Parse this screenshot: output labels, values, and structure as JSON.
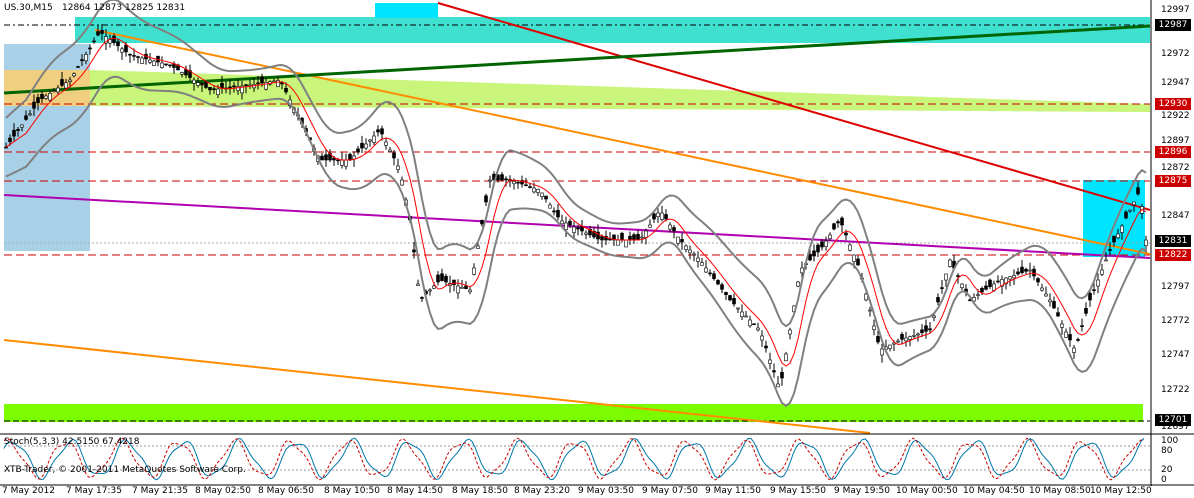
{
  "header": {
    "symbol": "US.30,M15",
    "ohlc": "12864 12873 12825 12831"
  },
  "indicator": {
    "label": "Stoch(5,3,3) 42.5150 67.4218"
  },
  "copyright": "XTB-Trader, © 2001-2011 MetaQuotes Software Corp.",
  "price_axis": {
    "ticks": [
      "12997",
      "12972",
      "12947",
      "12922",
      "12897",
      "12872",
      "12847",
      "12797",
      "12772",
      "12747",
      "12722",
      "12697"
    ]
  },
  "price_boxes": [
    {
      "label": "12987",
      "bg": "#000000",
      "fg": "#ffffff"
    },
    {
      "label": "12930",
      "bg": "#cc0000",
      "fg": "#ffffff"
    },
    {
      "label": "12896",
      "bg": "#cc0000",
      "fg": "#ffffff"
    },
    {
      "label": "12875",
      "bg": "#cc0000",
      "fg": "#ffffff"
    },
    {
      "label": "12831",
      "bg": "#000000",
      "fg": "#ffffff"
    },
    {
      "label": "12822",
      "bg": "#cc0000",
      "fg": "#ffffff"
    },
    {
      "label": "12701",
      "bg": "#000000",
      "fg": "#ffffff"
    }
  ],
  "stoch_axis": {
    "ticks": [
      "100",
      "80",
      "20",
      "0"
    ]
  },
  "time_axis": {
    "ticks": [
      "7 May 2012",
      "7 May 17:35",
      "7 May 21:35",
      "8 May 02:50",
      "8 May 06:50",
      "8 May 10:50",
      "8 May 14:50",
      "8 May 18:50",
      "8 May 23:20",
      "9 May 03:50",
      "9 May 07:50",
      "9 May 11:50",
      "9 May 15:50",
      "9 May 19:50",
      "10 May 00:50",
      "10 May 04:50",
      "10 May 08:50",
      "10 May 12:50"
    ]
  },
  "colors": {
    "bull_candle": "#ffffff",
    "bear_candle": "#000000",
    "bollinger": "#808080",
    "ma": "#ff0000",
    "red_trend": "#dd0000",
    "orange_trend": "#ff8c00",
    "green_trend": "#006400",
    "magenta_trend": "#b000b0",
    "turquoise_zone": "#40e0d0",
    "cyan_zone": "#00e5ff",
    "lime_zone": "#7cfc00",
    "pale_green_zone": "#c8f57a",
    "steelblue_zone": "#a8d0e6",
    "tan_zone": "#f0d080"
  }
}
